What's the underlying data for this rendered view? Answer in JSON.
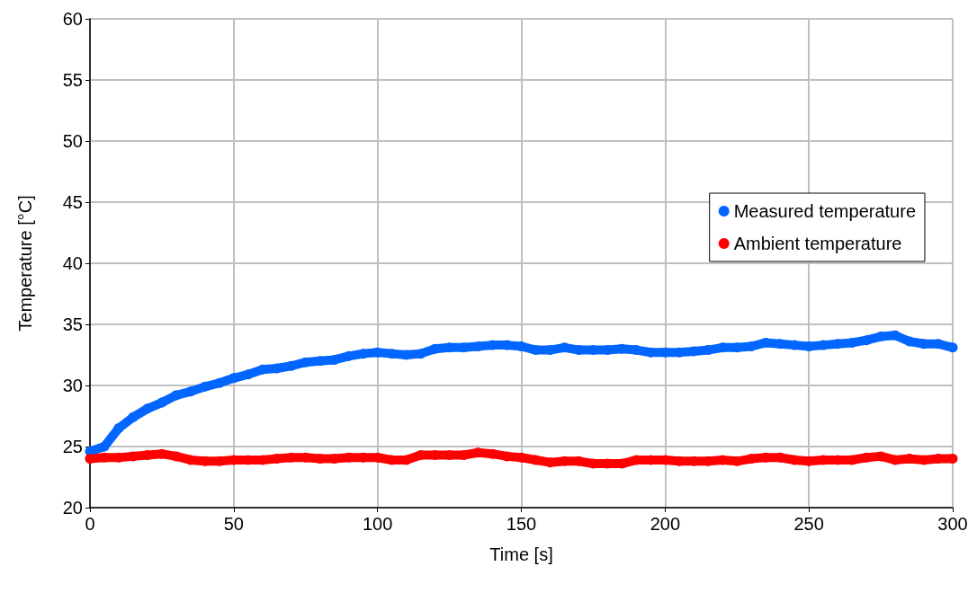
{
  "chart_data": {
    "type": "line",
    "xlabel": "Time [s]",
    "ylabel": "Temperature [°C]",
    "x": [
      0,
      5,
      10,
      15,
      20,
      25,
      30,
      35,
      40,
      45,
      50,
      55,
      60,
      65,
      70,
      75,
      80,
      85,
      90,
      95,
      100,
      105,
      110,
      115,
      120,
      125,
      130,
      135,
      140,
      145,
      150,
      155,
      160,
      165,
      170,
      175,
      180,
      185,
      190,
      195,
      200,
      205,
      210,
      215,
      220,
      225,
      230,
      235,
      240,
      245,
      250,
      255,
      260,
      265,
      270,
      275,
      280,
      285,
      290,
      295,
      300
    ],
    "series": [
      {
        "name": "Measured temperature",
        "color": "#0066ff",
        "values": [
          24.6,
          25.0,
          26.5,
          27.4,
          28.1,
          28.6,
          29.2,
          29.5,
          29.9,
          30.2,
          30.6,
          30.9,
          31.3,
          31.4,
          31.6,
          31.9,
          32.0,
          32.1,
          32.4,
          32.6,
          32.7,
          32.6,
          32.5,
          32.6,
          33.0,
          33.1,
          33.1,
          33.2,
          33.3,
          33.3,
          33.2,
          32.9,
          32.9,
          33.1,
          32.9,
          32.9,
          32.9,
          33.0,
          32.9,
          32.7,
          32.7,
          32.7,
          32.8,
          32.9,
          33.1,
          33.1,
          33.2,
          33.5,
          33.4,
          33.3,
          33.2,
          33.3,
          33.4,
          33.5,
          33.7,
          34.0,
          34.1,
          33.6,
          33.4,
          33.4,
          33.1
        ]
      },
      {
        "name": "Ambient temperature",
        "color": "#ff0000",
        "values": [
          24.0,
          24.1,
          24.1,
          24.2,
          24.3,
          24.4,
          24.2,
          23.9,
          23.8,
          23.8,
          23.9,
          23.9,
          23.9,
          24.0,
          24.1,
          24.1,
          24.0,
          24.0,
          24.1,
          24.1,
          24.1,
          23.9,
          23.9,
          24.3,
          24.3,
          24.3,
          24.3,
          24.5,
          24.4,
          24.2,
          24.1,
          23.9,
          23.7,
          23.8,
          23.8,
          23.6,
          23.6,
          23.6,
          23.9,
          23.9,
          23.9,
          23.8,
          23.8,
          23.8,
          23.9,
          23.8,
          24.0,
          24.1,
          24.1,
          23.9,
          23.8,
          23.9,
          23.9,
          23.9,
          24.1,
          24.2,
          23.9,
          24.0,
          23.9,
          24.0,
          24.0
        ]
      }
    ],
    "xlim": [
      0,
      300
    ],
    "xticks": [
      0,
      50,
      100,
      150,
      200,
      250,
      300
    ],
    "ylim": [
      20,
      60
    ],
    "yticks": [
      20,
      25,
      30,
      35,
      40,
      45,
      50,
      55,
      60
    ],
    "grid": true,
    "legend": "right",
    "marker": "circle"
  }
}
